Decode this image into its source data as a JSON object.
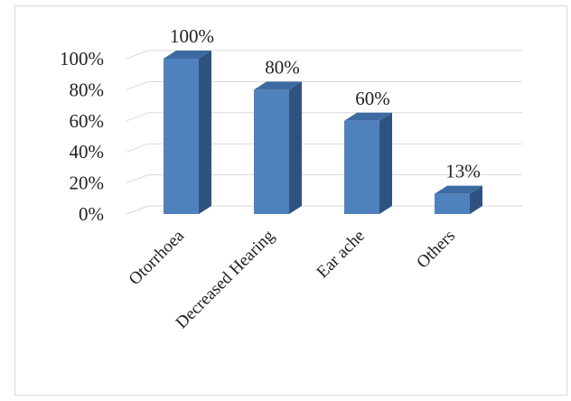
{
  "chart_data": {
    "type": "bar",
    "style": "3d-column",
    "title": "",
    "xlabel": "",
    "ylabel": "",
    "categories": [
      "Otorrhoea",
      "Decreased Hearing",
      "Ear ache",
      "Others"
    ],
    "values": [
      100,
      80,
      60,
      13
    ],
    "data_labels": [
      "100%",
      "80%",
      "60%",
      "13%"
    ],
    "ylim": [
      0,
      100
    ],
    "yticks": [
      0,
      20,
      40,
      60,
      80,
      100
    ],
    "ytick_labels": [
      "0%",
      "20%",
      "40%",
      "60%",
      "80%",
      "100%"
    ],
    "grid": true,
    "legend": "none",
    "colors": {
      "bar_front": "#4f81bd",
      "bar_side": "#2f5380",
      "bar_top": "#3d6aa1",
      "grid": "#d9d9d9"
    }
  }
}
